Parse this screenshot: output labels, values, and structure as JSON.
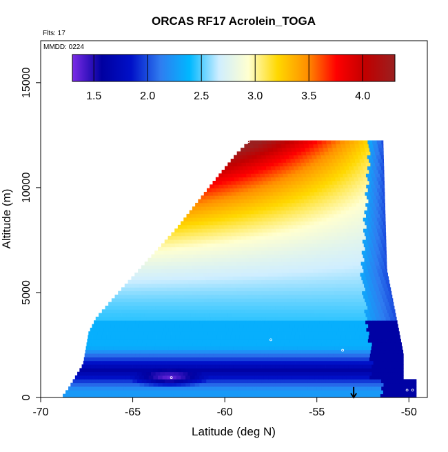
{
  "chart_data": {
    "type": "heatmap",
    "title": "ORCAS RF17 Acrolein_TOGA",
    "subtitle_flights": "Flts: 17",
    "subtitle_date": "MMDD: 0224",
    "xlabel": "Latitude (deg N)",
    "ylabel": "Altitude (m)",
    "xlim": [
      -70,
      -49
    ],
    "ylim": [
      0,
      17000
    ],
    "x_ticks": [
      -70,
      -65,
      -60,
      -55,
      -50
    ],
    "x_tick_labels": [
      "-70",
      "-65",
      "-60",
      "-55",
      "-50"
    ],
    "y_ticks": [
      0,
      5000,
      10000,
      15000
    ],
    "y_tick_labels": [
      "0",
      "5000",
      "10000",
      "15000"
    ],
    "grid": false,
    "colorbar": {
      "range": [
        1.3,
        4.3
      ],
      "ticks": [
        1.5,
        2.0,
        2.5,
        3.0,
        3.5,
        4.0
      ],
      "tick_labels": [
        "1.5",
        "2.0",
        "2.5",
        "3.0",
        "3.5",
        "4.0"
      ],
      "colors": [
        "#7b2be6",
        "#0000a0",
        "#0010c8",
        "#2f7cf0",
        "#00b8ff",
        "#cfeeff",
        "#ffffd0",
        "#ffd800",
        "#ff9000",
        "#ff0000",
        "#c00000",
        "#9a2020"
      ]
    },
    "samples": [
      {
        "lat": -67.3,
        "alt": 3600
      },
      {
        "lat": -62.9,
        "alt": 950
      },
      {
        "lat": -58.7,
        "alt": 12200
      },
      {
        "lat": -57.5,
        "alt": 2750
      },
      {
        "lat": -53.6,
        "alt": 2250
      },
      {
        "lat": -50.1,
        "alt": 350
      },
      {
        "lat": -49.8,
        "alt": 350
      }
    ],
    "marker": {
      "lat": -53.0,
      "direction": "down"
    }
  }
}
